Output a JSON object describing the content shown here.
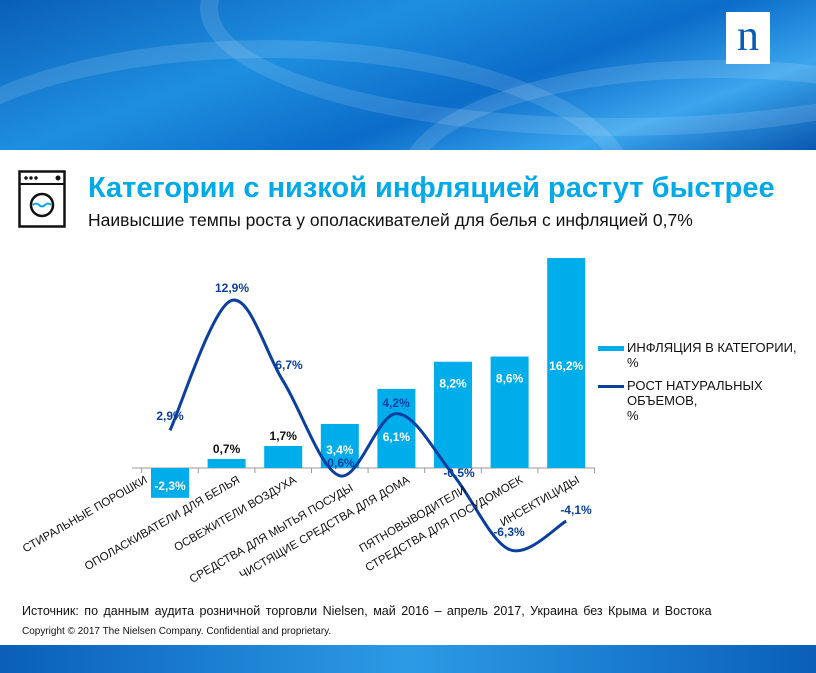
{
  "header": {
    "logo": "n"
  },
  "title": "Категории с низкой инфляцией растут быстрее",
  "subtitle": "Наивысшие темпы роста у ополаскивателей для белья с инфляцией 0,7%",
  "source": "Источник: по данным аудита розничной торговли Nielsen, май 2016 – апрель 2017, Украина без Крыма и Востока",
  "copyright": "Copyright © 2017 The Nielsen Company. Confidential and proprietary.",
  "colors": {
    "bar": "#00adeb",
    "line": "#0a3fa0",
    "title": "#00a9e8"
  },
  "chart_data": {
    "type": "bar+line",
    "categories": [
      "СТИРАЛЬНЫЕ ПОРОШКИ",
      "ОПОЛАСКИВАТЕЛИ ДЛЯ БЕЛЬЯ",
      "ОСВЕЖИТЕЛИ ВОЗДУХА",
      "СРЕДСТВА ДЛЯ МЫТЬЯ ПОСУДЫ",
      "ЧИСТЯЩИЕ СРЕДСТВА ДЛЯ ДОМА",
      "ПЯТНОВЫВОДИТЕЛИ",
      "СТРЕДСТВА ДЛЯ ПОСУДОМОЕК",
      "ИНСЕКТИЦИДЫ"
    ],
    "series": [
      {
        "name": "ИНФЛЯЦИЯ В КАТЕГОРИИ, %",
        "type": "bar",
        "values": [
          -2.3,
          0.7,
          1.7,
          3.4,
          6.1,
          8.2,
          8.6,
          16.2
        ],
        "labels": [
          "-2,3%",
          "0,7%",
          "1,7%",
          "3,4%",
          "6,1%",
          "8,2%",
          "8,6%",
          "16,2%"
        ]
      },
      {
        "name": "РОСТ НАТУРАЛЬНЫХ ОБЪЕМОВ, %",
        "type": "line",
        "values": [
          2.9,
          12.9,
          6.7,
          -0.6,
          4.2,
          -0.5,
          -6.3,
          -4.1
        ],
        "labels": [
          "2,9%",
          "12,9%",
          "6,7%",
          "-0,6%",
          "4,2%",
          "-0,5%",
          "-6,3%",
          "-4,1%"
        ]
      }
    ],
    "legend_lines": [
      [
        "ИНФЛЯЦИЯ В КАТЕГОРИИ,",
        "%"
      ],
      [
        "РОСТ НАТУРАЛЬНЫХ",
        "ОБЪЕМОВ,",
        "%"
      ]
    ],
    "legend_position": "right",
    "ylim": [
      -7,
      17
    ],
    "grid": false
  }
}
